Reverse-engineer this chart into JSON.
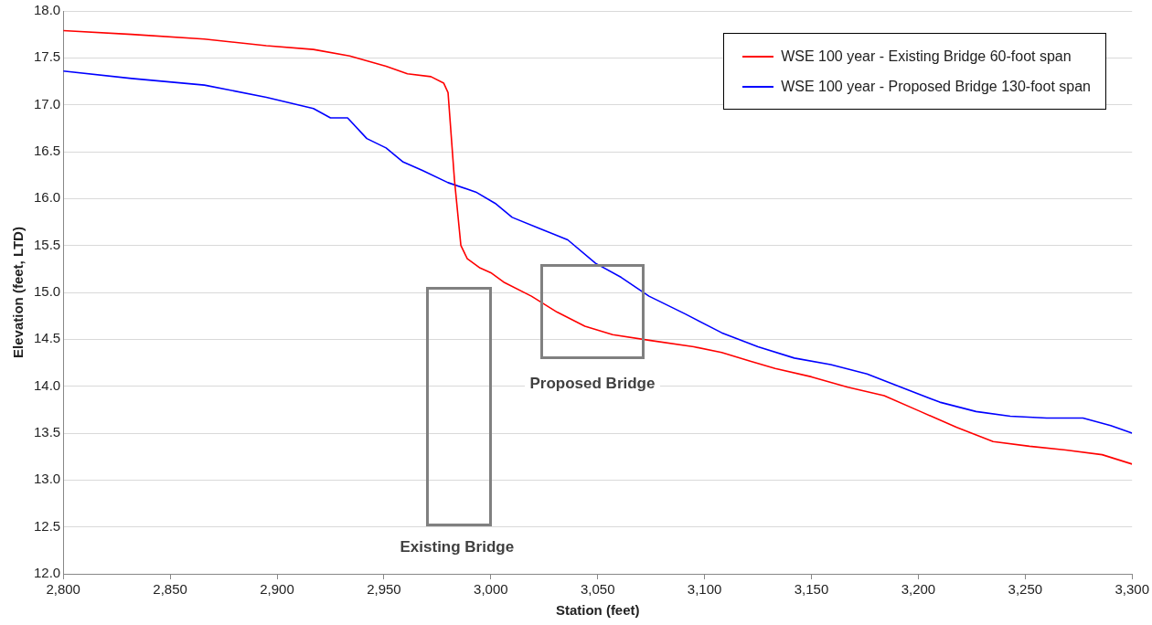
{
  "chart_data": {
    "type": "line",
    "xlabel": "Station (feet)",
    "ylabel": "Elevation (feet, LTD)",
    "xlim": [
      2800,
      3300
    ],
    "xticks": [
      {
        "value": 2800,
        "label": "2,800"
      },
      {
        "value": 2850,
        "label": "2,850"
      },
      {
        "value": 2900,
        "label": "2,900"
      },
      {
        "value": 2950,
        "label": "2,950"
      },
      {
        "value": 3000,
        "label": "3,000"
      },
      {
        "value": 3050,
        "label": "3,050"
      },
      {
        "value": 3100,
        "label": "3,100"
      },
      {
        "value": 3150,
        "label": "3,150"
      },
      {
        "value": 3200,
        "label": "3,200"
      },
      {
        "value": 3250,
        "label": "3,250"
      },
      {
        "value": 3300,
        "label": "3,300"
      }
    ],
    "ylim": [
      12,
      18
    ],
    "yticks": [
      {
        "value": 12,
        "label": "12.0"
      },
      12.5,
      {
        "value": 13,
        "label": "13.0"
      },
      13.5,
      {
        "value": 14,
        "label": "14.0"
      },
      14.5,
      {
        "value": 15,
        "label": "15.0"
      },
      15.5,
      {
        "value": 16,
        "label": "16.0"
      },
      16.5,
      {
        "value": 17,
        "label": "17.0"
      },
      17.5,
      {
        "value": 18,
        "label": "18.0"
      }
    ],
    "grid": "y",
    "legend": "top right",
    "marker": "none",
    "line_style": "solid",
    "series": [
      {
        "name": "WSE 100 year - Existing Bridge 60-foot span",
        "color": "#ff0000",
        "x": [
          2800,
          2832,
          2866,
          2895,
          2917,
          2934,
          2951,
          2961,
          2972,
          2978,
          2980,
          2983,
          2986,
          2989,
          2995,
          3000,
          3006,
          3019,
          3031,
          3044,
          3057,
          3074,
          3095,
          3108,
          3121,
          3133,
          3150,
          3167,
          3184,
          3201,
          3218,
          3235,
          3252,
          3269,
          3286,
          3300
        ],
        "values": [
          17.79,
          17.75,
          17.7,
          17.63,
          17.59,
          17.52,
          17.41,
          17.33,
          17.3,
          17.23,
          17.13,
          16.2,
          15.5,
          15.36,
          15.26,
          15.21,
          15.11,
          14.96,
          14.79,
          14.64,
          14.55,
          14.49,
          14.42,
          14.36,
          14.27,
          14.19,
          14.1,
          13.99,
          13.9,
          13.73,
          13.56,
          13.41,
          13.36,
          13.32,
          13.27,
          13.17
        ]
      },
      {
        "name": "WSE 100 year - Proposed Bridge 130-foot span",
        "color": "#0000ff",
        "x": [
          2800,
          2832,
          2866,
          2895,
          2917,
          2925,
          2933,
          2942,
          2951,
          2959,
          2968,
          2980,
          2993,
          3002,
          3010,
          3023,
          3036,
          3049,
          3061,
          3074,
          3091,
          3108,
          3125,
          3142,
          3159,
          3176,
          3193,
          3210,
          3227,
          3243,
          3260,
          3277,
          3290,
          3300
        ],
        "values": [
          17.36,
          17.28,
          17.21,
          17.08,
          16.96,
          16.86,
          16.86,
          16.64,
          16.54,
          16.39,
          16.3,
          16.17,
          16.07,
          15.95,
          15.8,
          15.68,
          15.56,
          15.31,
          15.16,
          14.96,
          14.77,
          14.57,
          14.42,
          14.3,
          14.23,
          14.13,
          13.98,
          13.83,
          13.73,
          13.68,
          13.66,
          13.66,
          13.58,
          13.5
        ]
      }
    ],
    "annotations": [
      "Existing Bridge",
      "Proposed Bridge"
    ]
  }
}
